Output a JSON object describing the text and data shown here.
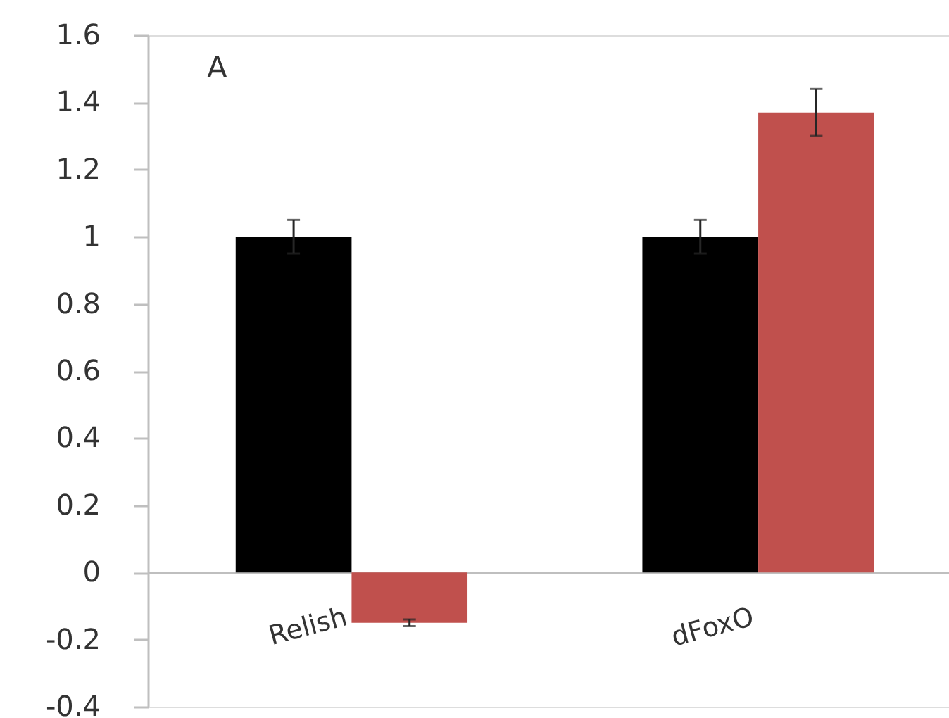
{
  "chart_data": {
    "type": "bar",
    "annotations": [
      "A"
    ],
    "categories": [
      "Relish",
      "dFoxO"
    ],
    "series": [
      {
        "color": "#000000",
        "values": [
          1.0,
          1.0
        ],
        "errors": [
          0.05,
          0.05
        ]
      },
      {
        "color": "#c0504d",
        "values": [
          -0.15,
          1.37
        ],
        "errors": [
          0.01,
          0.07
        ]
      }
    ],
    "ylim": [
      -0.4,
      1.6
    ],
    "yticks": [
      -0.4,
      -0.2,
      0,
      0.2,
      0.4,
      0.6,
      0.8,
      1,
      1.2,
      1.4,
      1.6
    ]
  }
}
